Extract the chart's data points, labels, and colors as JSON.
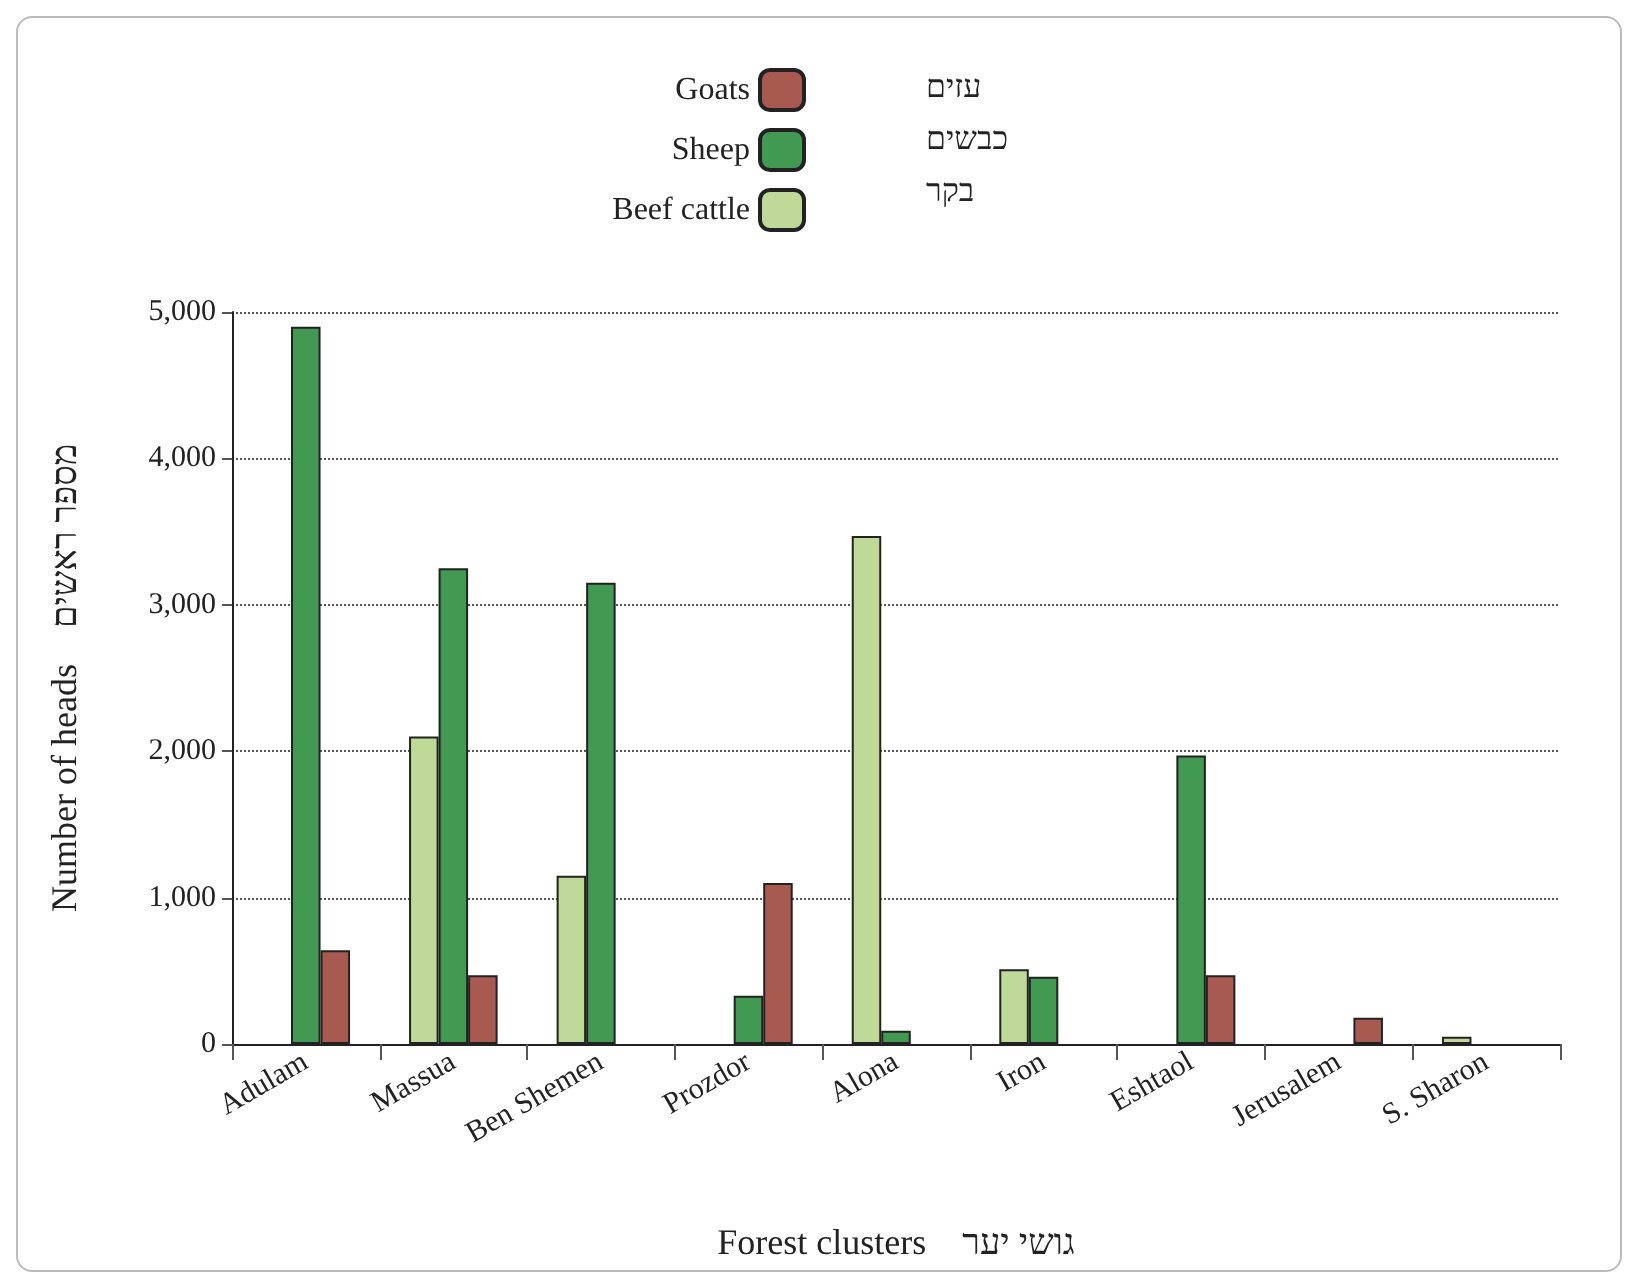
{
  "chart_data": {
    "type": "bar",
    "xlabel": "Forest clusters    גושי יער",
    "ylabel": "Number of heads    מספר ראשים",
    "categories": [
      "Adulam",
      "Massua",
      "Ben Shemen",
      "Prozdor",
      "Alona",
      "Iron",
      "Eshtaol",
      "Jerusalem",
      "S. Sharon"
    ],
    "series": [
      {
        "name": "Beef cattle",
        "color": "#bfda98",
        "values": [
          null,
          2100,
          1150,
          null,
          3470,
          510,
          null,
          null,
          50
        ]
      },
      {
        "name": "Sheep",
        "color": "#429a52",
        "values": [
          4900,
          3250,
          3150,
          330,
          90,
          460,
          1970,
          null,
          null
        ]
      },
      {
        "name": "Goats",
        "color": "#a85a50",
        "values": [
          640,
          470,
          null,
          1100,
          null,
          null,
          470,
          180,
          null
        ]
      }
    ],
    "annotations": [
      "בקר",
      "כבשים",
      "עזים"
    ],
    "ylim": [
      0,
      5000
    ],
    "yticks": [
      0,
      {
        "value": 1000,
        "label": "1,000"
      },
      {
        "value": 2000,
        "label": "2,000"
      },
      {
        "value": 3000,
        "label": "3,000"
      },
      {
        "value": 4000,
        "label": "4,000"
      },
      {
        "value": 5000,
        "label": "5,000"
      }
    ],
    "grid": "y",
    "legend": "top"
  }
}
